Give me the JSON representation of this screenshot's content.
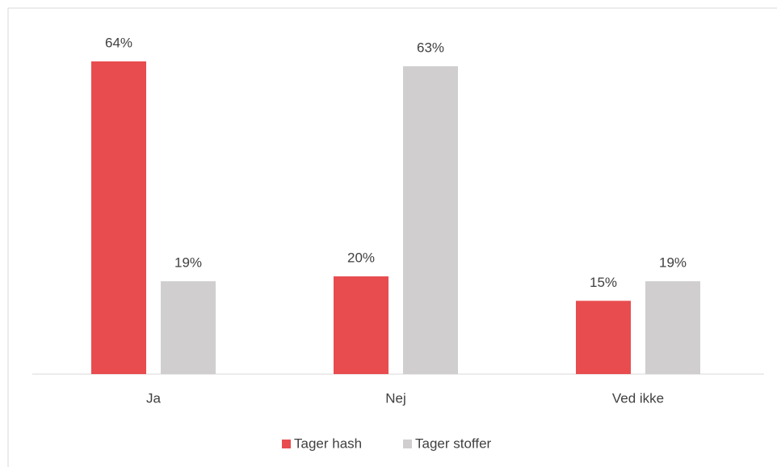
{
  "chart_data": {
    "type": "bar",
    "categories": [
      "Ja",
      "Nej",
      "Ved ikke"
    ],
    "series": [
      {
        "name": "Tager hash",
        "color": "#e84c4f",
        "values": [
          64,
          20,
          15
        ],
        "value_labels": [
          "64%",
          "20%",
          "15%"
        ]
      },
      {
        "name": "Tager stoffer",
        "color": "#d0cece",
        "values": [
          19,
          63,
          19
        ],
        "value_labels": [
          "19%",
          "63%",
          "19%"
        ]
      }
    ],
    "legend": "bottom"
  }
}
